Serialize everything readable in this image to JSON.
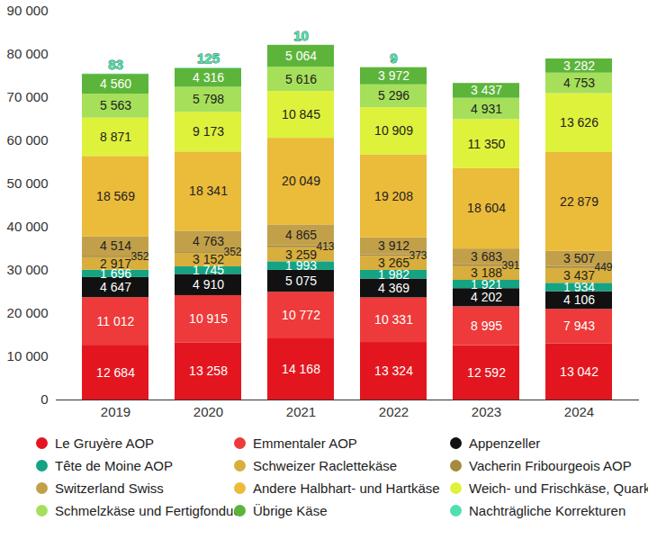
{
  "chart_data": {
    "type": "bar",
    "stacked": true,
    "data_labels": true,
    "categories": [
      "2019",
      "2020",
      "2021",
      "2022",
      "2023",
      "2024"
    ],
    "ylim": [
      0,
      90000
    ],
    "yticks": [
      0,
      {
        "value": 10000,
        "label": "10 000"
      },
      {
        "value": 20000,
        "label": "20 000"
      },
      {
        "value": 30000,
        "label": "30 000"
      },
      {
        "value": 40000,
        "label": "40 000"
      },
      {
        "value": 50000,
        "label": "50 000"
      },
      {
        "value": 60000,
        "label": "60 000"
      },
      {
        "value": 70000,
        "label": "70 000"
      },
      {
        "value": 80000,
        "label": "80 000"
      },
      {
        "value": 90000,
        "label": "90 000"
      }
    ],
    "series": [
      {
        "name": "Le Gruyère AOP",
        "color": "#e3161f",
        "values": [
          12684,
          13258,
          14168,
          13324,
          12592,
          13042
        ],
        "value_labels": [
          "12 684",
          "13 258",
          "14 168",
          "13 324",
          "12 592",
          "13 042"
        ]
      },
      {
        "name": "Emmentaler AOP",
        "color": "#ee3a3a",
        "values": [
          11012,
          10915,
          10772,
          10331,
          8995,
          7943
        ],
        "value_labels": [
          "11 012",
          "10 915",
          "10 772",
          "10 331",
          "8 995",
          "7 943"
        ]
      },
      {
        "name": "Appenzeller",
        "color": "#111111",
        "values": [
          4647,
          4910,
          5075,
          4369,
          4202,
          4106
        ],
        "value_labels": [
          "4 647",
          "4 910",
          "5 075",
          "4 369",
          "4 202",
          "4 106"
        ]
      },
      {
        "name": "Tête de Moine AOP",
        "color": "#14a383",
        "values": [
          1696,
          1745,
          1993,
          1982,
          1921,
          1934
        ],
        "value_labels": [
          "1 696",
          "1 745",
          "1 993",
          "1 982",
          "1 921",
          "1 934"
        ]
      },
      {
        "name": "Schweizer Raclettekäse",
        "color": "#d8ae3c",
        "values": [
          2917,
          3152,
          3259,
          3265,
          3188,
          3437
        ],
        "value_labels": [
          "2 917",
          "3 152",
          "3 259",
          "3 265",
          "3 188",
          "3 437"
        ]
      },
      {
        "name": "Vacherin Fribourgeois AOP",
        "color": "#a68a3e",
        "values": [
          352,
          352,
          413,
          373,
          391,
          449
        ],
        "value_labels": [
          "352",
          "352",
          "413",
          "373",
          "391",
          "449"
        ]
      },
      {
        "name": "Switzerland Swiss",
        "color": "#c2a04a",
        "values": [
          4514,
          4763,
          4865,
          3912,
          3683,
          3507
        ],
        "value_labels": [
          "4 514",
          "4 763",
          "4 865",
          "3 912",
          "3 683",
          "3 507"
        ]
      },
      {
        "name": "Andere Halbhart- und Hartkäse",
        "color": "#ebbb3a",
        "values": [
          18569,
          18341,
          20049,
          19208,
          18604,
          22879
        ],
        "value_labels": [
          "18 569",
          "18 341",
          "20 049",
          "19 208",
          "18 604",
          "22 879"
        ]
      },
      {
        "name": "Weich- und Frischkäse, Quark",
        "color": "#def23c",
        "values": [
          8871,
          9173,
          10845,
          10909,
          11350,
          13626
        ],
        "value_labels": [
          "8 871",
          "9 173",
          "10 845",
          "10 909",
          "11 350",
          "13 626"
        ]
      },
      {
        "name": "Schmelzkäse und Fertigfondue",
        "color": "#a6e05a",
        "values": [
          5563,
          5798,
          5616,
          5296,
          4931,
          4753
        ],
        "value_labels": [
          "5 563",
          "5 798",
          "5 616",
          "5 296",
          "4 931",
          "4 753"
        ]
      },
      {
        "name": "Übrige Käse",
        "color": "#5cb53a",
        "values": [
          4560,
          4316,
          5064,
          3972,
          3437,
          3282
        ],
        "value_labels": [
          "4 560",
          "4 316",
          "5 064",
          "3 972",
          "3 437",
          "3 282"
        ]
      },
      {
        "name": "Nachträgliche Korrekturen",
        "color": "#4fe0b0",
        "values": [
          83,
          125,
          10,
          9,
          null,
          null
        ],
        "value_labels": [
          "83",
          "125",
          "10",
          "9",
          null,
          null
        ]
      }
    ]
  }
}
